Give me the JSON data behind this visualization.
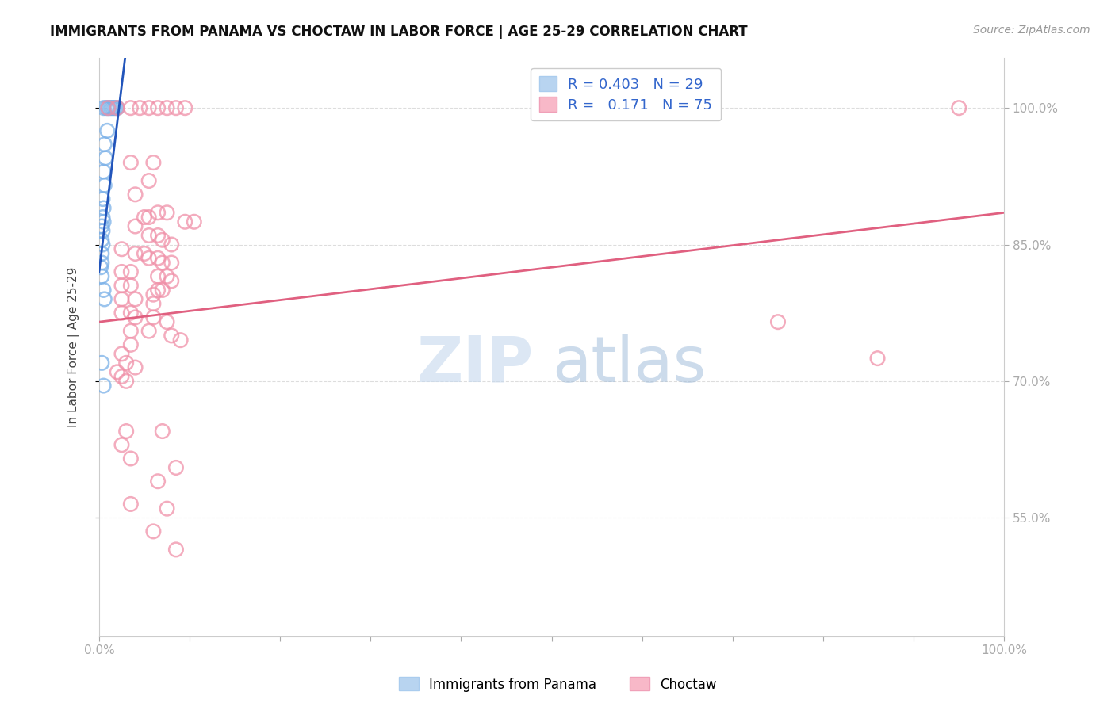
{
  "title": "IMMIGRANTS FROM PANAMA VS CHOCTAW IN LABOR FORCE | AGE 25-29 CORRELATION CHART",
  "source": "Source: ZipAtlas.com",
  "ylabel": "In Labor Force | Age 25-29",
  "ylabel_ticks_right": [
    "55.0%",
    "70.0%",
    "85.0%",
    "100.0%"
  ],
  "ytick_vals": [
    0.55,
    0.7,
    0.85,
    1.0
  ],
  "xlim": [
    0.0,
    1.0
  ],
  "ylim": [
    0.42,
    1.055
  ],
  "panama_color": "#7ab0e8",
  "choctaw_color": "#f090a8",
  "panama_line_color": "#2255bb",
  "choctaw_line_color": "#e06080",
  "panama_points": [
    [
      0.005,
      1.0
    ],
    [
      0.008,
      1.0
    ],
    [
      0.01,
      1.0
    ],
    [
      0.012,
      1.0
    ],
    [
      0.014,
      1.0
    ],
    [
      0.016,
      1.0
    ],
    [
      0.018,
      1.0
    ],
    [
      0.02,
      1.0
    ],
    [
      0.009,
      0.975
    ],
    [
      0.006,
      0.96
    ],
    [
      0.007,
      0.945
    ],
    [
      0.005,
      0.93
    ],
    [
      0.006,
      0.915
    ],
    [
      0.004,
      0.9
    ],
    [
      0.005,
      0.89
    ],
    [
      0.004,
      0.88
    ],
    [
      0.005,
      0.875
    ],
    [
      0.003,
      0.87
    ],
    [
      0.004,
      0.865
    ],
    [
      0.003,
      0.855
    ],
    [
      0.004,
      0.85
    ],
    [
      0.003,
      0.84
    ],
    [
      0.003,
      0.83
    ],
    [
      0.002,
      0.825
    ],
    [
      0.003,
      0.815
    ],
    [
      0.005,
      0.8
    ],
    [
      0.006,
      0.79
    ],
    [
      0.003,
      0.72
    ],
    [
      0.005,
      0.695
    ]
  ],
  "choctaw_points": [
    [
      0.01,
      1.0
    ],
    [
      0.02,
      1.0
    ],
    [
      0.035,
      1.0
    ],
    [
      0.045,
      1.0
    ],
    [
      0.055,
      1.0
    ],
    [
      0.065,
      1.0
    ],
    [
      0.075,
      1.0
    ],
    [
      0.085,
      1.0
    ],
    [
      0.095,
      1.0
    ],
    [
      0.95,
      1.0
    ],
    [
      0.035,
      0.94
    ],
    [
      0.06,
      0.94
    ],
    [
      0.055,
      0.92
    ],
    [
      0.04,
      0.905
    ],
    [
      0.065,
      0.885
    ],
    [
      0.075,
      0.885
    ],
    [
      0.05,
      0.88
    ],
    [
      0.055,
      0.88
    ],
    [
      0.095,
      0.875
    ],
    [
      0.105,
      0.875
    ],
    [
      0.04,
      0.87
    ],
    [
      0.055,
      0.86
    ],
    [
      0.065,
      0.86
    ],
    [
      0.07,
      0.855
    ],
    [
      0.08,
      0.85
    ],
    [
      0.025,
      0.845
    ],
    [
      0.04,
      0.84
    ],
    [
      0.05,
      0.84
    ],
    [
      0.055,
      0.835
    ],
    [
      0.065,
      0.835
    ],
    [
      0.07,
      0.83
    ],
    [
      0.08,
      0.83
    ],
    [
      0.025,
      0.82
    ],
    [
      0.035,
      0.82
    ],
    [
      0.065,
      0.815
    ],
    [
      0.075,
      0.815
    ],
    [
      0.08,
      0.81
    ],
    [
      0.025,
      0.805
    ],
    [
      0.035,
      0.805
    ],
    [
      0.065,
      0.8
    ],
    [
      0.07,
      0.8
    ],
    [
      0.06,
      0.795
    ],
    [
      0.025,
      0.79
    ],
    [
      0.04,
      0.79
    ],
    [
      0.06,
      0.785
    ],
    [
      0.025,
      0.775
    ],
    [
      0.035,
      0.775
    ],
    [
      0.04,
      0.77
    ],
    [
      0.06,
      0.77
    ],
    [
      0.075,
      0.765
    ],
    [
      0.035,
      0.755
    ],
    [
      0.055,
      0.755
    ],
    [
      0.08,
      0.75
    ],
    [
      0.09,
      0.745
    ],
    [
      0.035,
      0.74
    ],
    [
      0.025,
      0.73
    ],
    [
      0.03,
      0.72
    ],
    [
      0.04,
      0.715
    ],
    [
      0.02,
      0.71
    ],
    [
      0.025,
      0.705
    ],
    [
      0.03,
      0.7
    ],
    [
      0.75,
      0.765
    ],
    [
      0.86,
      0.725
    ],
    [
      0.03,
      0.645
    ],
    [
      0.07,
      0.645
    ],
    [
      0.025,
      0.63
    ],
    [
      0.035,
      0.615
    ],
    [
      0.085,
      0.605
    ],
    [
      0.065,
      0.59
    ],
    [
      0.035,
      0.565
    ],
    [
      0.075,
      0.56
    ],
    [
      0.06,
      0.535
    ],
    [
      0.085,
      0.515
    ]
  ],
  "watermark_zip": "ZIP",
  "watermark_atlas": "atlas",
  "background_color": "#ffffff",
  "grid_color": "#dddddd"
}
